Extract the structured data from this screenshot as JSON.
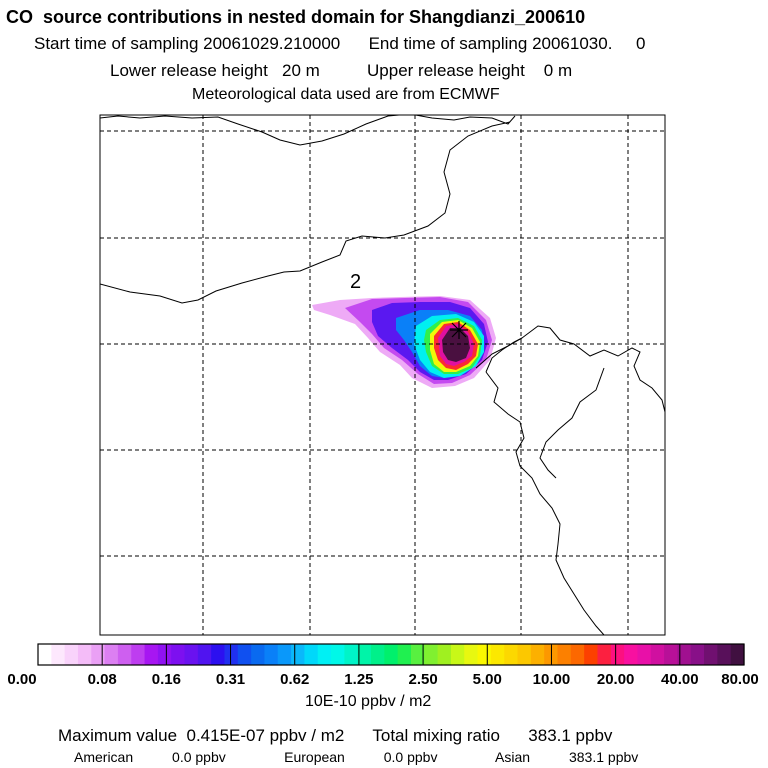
{
  "header": {
    "title": "CO  source contributions in nested domain for Shangdianzi_200610",
    "start_label": "Start time of sampling",
    "start_value": "20061029.210000",
    "end_label": "End time of sampling",
    "end_value": "20061030.     0",
    "lower_label": "Lower release height",
    "lower_value": "20 m",
    "upper_label": "Upper release height",
    "upper_value": "0 m",
    "met_line": "Meteorological data used are from ECMWF"
  },
  "map": {
    "contour_label": "2",
    "receptor_marker": "star"
  },
  "colorbar": {
    "units": "10E-10 ppbv / m2",
    "tick_labels": [
      "0.00",
      "0.08",
      "0.16",
      "0.31",
      "0.62",
      "1.25",
      "2.50",
      "5.00",
      "10.00",
      "20.00",
      "40.00",
      "80.00"
    ],
    "colors": [
      "#ffffff",
      "#fde8fd",
      "#f9d3fb",
      "#f4bcf8",
      "#eaa0f5",
      "#dc7ff2",
      "#ce5ff0",
      "#be3df0",
      "#a716f2",
      "#9012f2",
      "#7d10f0",
      "#6a12f0",
      "#5014f0",
      "#2c10f0",
      "#2030f0",
      "#1050f0",
      "#0a6af0",
      "#0a80f8",
      "#0a98fa",
      "#0ab8fa",
      "#00d8fa",
      "#00f0f4",
      "#00f8e8",
      "#00f4c8",
      "#00f4a8",
      "#00f08a",
      "#00f06c",
      "#20f050",
      "#58f040",
      "#80f030",
      "#a0f020",
      "#c8f818",
      "#e8f810",
      "#fbf800",
      "#fce800",
      "#fcd800",
      "#fcc800",
      "#fcb000",
      "#fc9800",
      "#fc8000",
      "#fc6800",
      "#fc4000",
      "#fc2040",
      "#fc1080",
      "#f810a0",
      "#e810a8",
      "#d010a0",
      "#b81098",
      "#a01090",
      "#881088",
      "#701070",
      "#58105a",
      "#401040"
    ]
  },
  "footer": {
    "max_label": "Maximum value",
    "max_value": "0.415E-07 ppbv / m2",
    "total_label": "Total mixing ratio",
    "total_value": "383.1 ppbv",
    "regions": [
      {
        "name": "American",
        "value": "0.0 ppbv"
      },
      {
        "name": "European",
        "value": "0.0 ppbv"
      },
      {
        "name": "Asian",
        "value": "383.1 ppbv"
      }
    ]
  },
  "chart_data": {
    "type": "heatmap",
    "title": "CO  source contributions in nested domain for Shangdianzi_200610",
    "colorbar_label": "10E-10 ppbv / m2",
    "colorbar_ticks": [
      0.0,
      0.08,
      0.16,
      0.31,
      0.62,
      1.25,
      2.5,
      5.0,
      10.0,
      20.0,
      40.0,
      80.0
    ],
    "maximum_value": "0.415E-07 ppbv / m2",
    "total_mixing_ratio_ppbv": 383.1,
    "contributions_ppbv": {
      "American": 0.0,
      "European": 0.0,
      "Asian": 383.1
    },
    "grid": true
  }
}
